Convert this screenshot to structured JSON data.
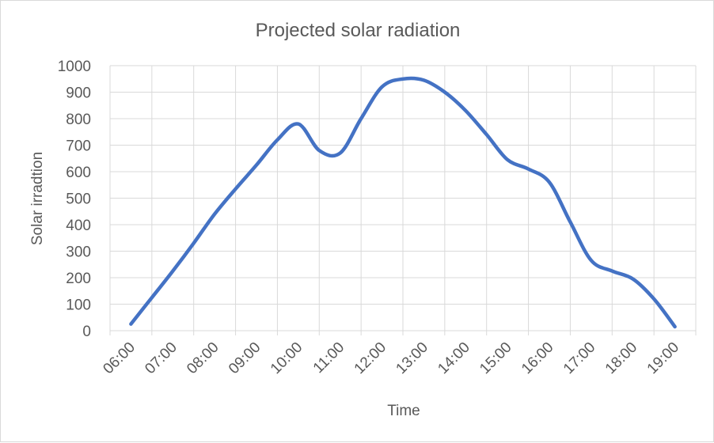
{
  "chart_data": {
    "type": "line",
    "title": "Projected solar radiation",
    "xlabel": "Time",
    "ylabel": "Solar irradtion",
    "categories": [
      "06:00",
      "07:00",
      "08:00",
      "09:00",
      "10:00",
      "11:00",
      "12:00",
      "13:00",
      "14:00",
      "15:00",
      "16:00",
      "17:00",
      "18:00",
      "19:00"
    ],
    "y_ticks": [
      "0",
      "100",
      "200",
      "300",
      "400",
      "500",
      "600",
      "700",
      "800",
      "900",
      "1000"
    ],
    "ylim": [
      0,
      1000
    ],
    "grid": true,
    "legend": "none",
    "series_color": "#4472c4",
    "x": [
      0.5,
      1.0,
      1.5,
      2.0,
      2.5,
      3.0,
      3.5,
      4.0,
      4.5,
      5.0,
      5.5,
      6.0,
      6.5,
      7.0,
      7.5,
      8.0,
      8.5,
      9.0,
      9.5,
      10.0,
      10.5,
      11.0,
      11.5,
      12.0,
      12.5,
      13.0,
      13.5
    ],
    "values": [
      25,
      125,
      225,
      330,
      440,
      535,
      625,
      720,
      780,
      680,
      670,
      800,
      920,
      950,
      945,
      900,
      830,
      740,
      645,
      610,
      560,
      410,
      265,
      225,
      195,
      120,
      15
    ]
  }
}
